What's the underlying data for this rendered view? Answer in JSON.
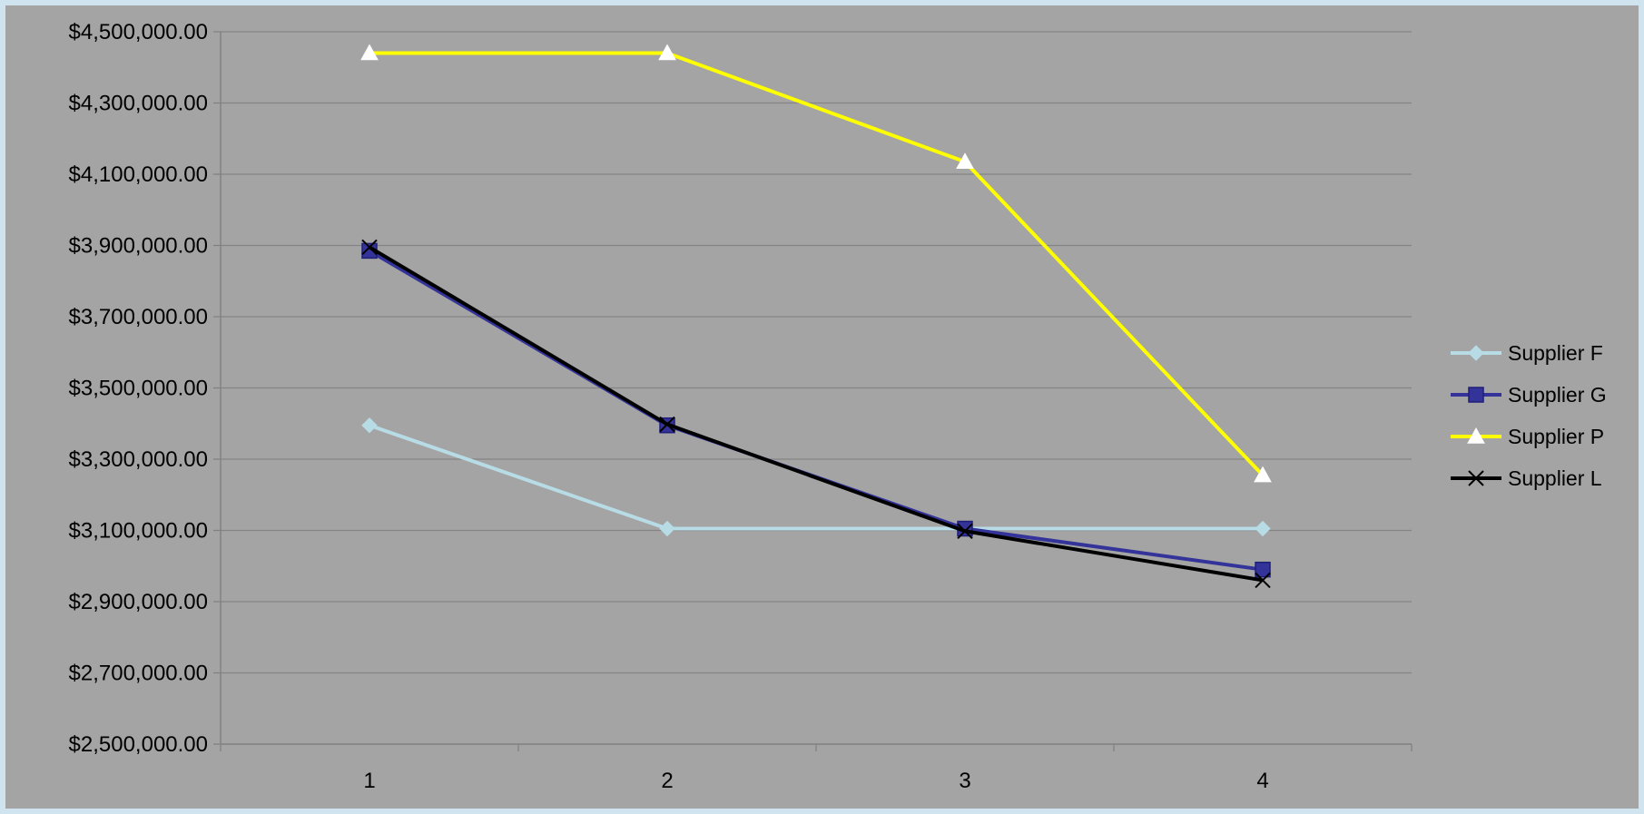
{
  "chart_data": {
    "type": "line",
    "categories": [
      "1",
      "2",
      "3",
      "4"
    ],
    "ylim": [
      2500000,
      4500000
    ],
    "ytick_step": 200000,
    "y_tick_labels": [
      "$2,500,000.00",
      "$2,700,000.00",
      "$2,900,000.00",
      "$3,100,000.00",
      "$3,300,000.00",
      "$3,500,000.00",
      "$3,700,000.00",
      "$3,900,000.00",
      "$4,100,000.00",
      "$4,300,000.00",
      "$4,500,000.00"
    ],
    "grid": true,
    "legend_position": "right",
    "background_color": "#a4a4a4",
    "series": [
      {
        "name": "Supplier F",
        "marker": "diamond",
        "color": "#b8dce6",
        "values": [
          3395000,
          3105000,
          3105000,
          3105000
        ]
      },
      {
        "name": "Supplier G",
        "marker": "square",
        "color": "#33339a",
        "values": [
          3885000,
          3395000,
          3105000,
          2990000
        ]
      },
      {
        "name": "Supplier P",
        "marker": "triangle",
        "color": "#ffff00",
        "values": [
          4440000,
          4440000,
          4135000,
          3255000
        ]
      },
      {
        "name": "Supplier L",
        "marker": "x",
        "color": "#000000",
        "values": [
          3895000,
          3398000,
          3098000,
          2960000
        ]
      }
    ]
  }
}
